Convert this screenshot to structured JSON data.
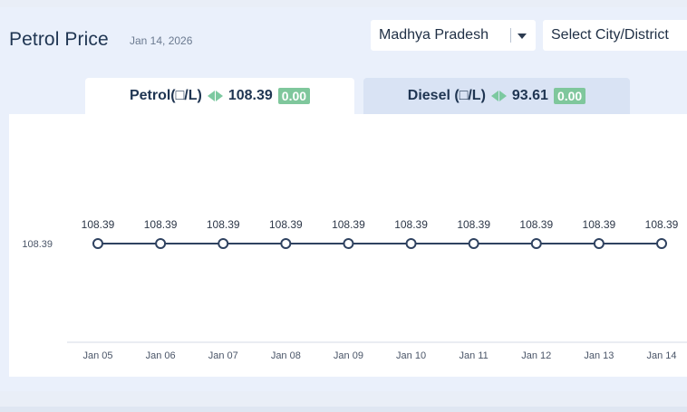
{
  "header": {
    "title": "Petrol Price",
    "date": "Jan 14, 2026"
  },
  "filters": {
    "state": "Madhya Pradesh",
    "city_placeholder": "Select City/District"
  },
  "tabs": {
    "petrol": {
      "label": "Petrol(□/L)",
      "price": "108.39",
      "change": "0.00"
    },
    "diesel": {
      "label": "Diesel (□/L)",
      "price": "93.61",
      "change": "0.00"
    }
  },
  "colors": {
    "line": "#2f4260",
    "change_badge": "#7fc79c",
    "arrow": "#7cc9a0"
  },
  "chart_data": {
    "type": "line",
    "categories": [
      "Jan 05",
      "Jan 06",
      "Jan 07",
      "Jan 08",
      "Jan 09",
      "Jan 10",
      "Jan 11",
      "Jan 12",
      "Jan 13",
      "Jan 14"
    ],
    "series": [
      {
        "values": [
          108.39,
          108.39,
          108.39,
          108.39,
          108.39,
          108.39,
          108.39,
          108.39,
          108.39,
          108.39
        ]
      }
    ],
    "data_labels": [
      "108.39",
      "108.39",
      "108.39",
      "108.39",
      "108.39",
      "108.39",
      "108.39",
      "108.39",
      "108.39",
      "108.39"
    ],
    "y_ticks": [
      "108.39"
    ],
    "grid": false,
    "legend": "none"
  }
}
